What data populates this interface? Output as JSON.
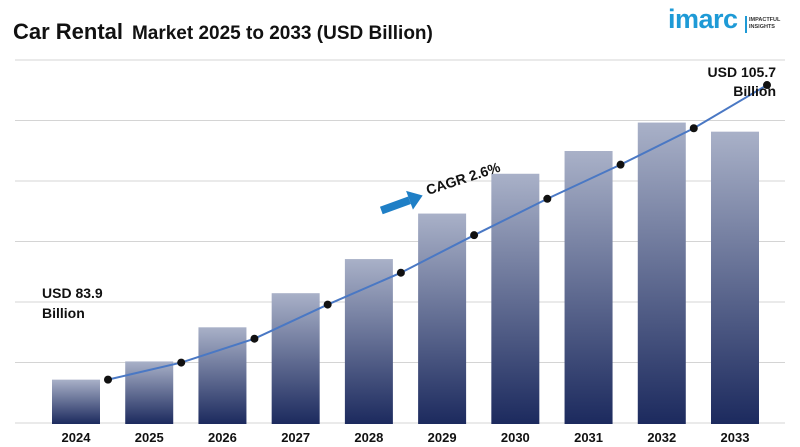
{
  "title": {
    "main": "Car Rental",
    "rest": "Market 2025 to 2033 (USD Billion)"
  },
  "logo": {
    "word": "imarc",
    "tagline": [
      "IMPACTFUL",
      "INSIGHTS"
    ]
  },
  "colors": {
    "bar_top": "#a9b1c8",
    "bar_bottom": "#1c2a5e",
    "line": "#4a78c4",
    "marker": "#111111",
    "arrow": "#1f7fc6",
    "grid": "#d4d4d4"
  },
  "chart_data": {
    "type": "bar",
    "categories": [
      "2024",
      "2025",
      "2026",
      "2027",
      "2028",
      "2029",
      "2030",
      "2031",
      "2032",
      "2033"
    ],
    "values": [
      83.9,
      85.5,
      88.5,
      91.5,
      94.5,
      98.5,
      102.0,
      104.0,
      106.5,
      105.7
    ],
    "trend_values": [
      83.9,
      85.4,
      87.5,
      90.5,
      93.3,
      96.6,
      99.8,
      102.8,
      106.0,
      109.8
    ],
    "ylim": [
      80,
      112
    ],
    "grid": true,
    "annotations": {
      "start_label": [
        "USD 83.9",
        "Billion"
      ],
      "end_label": [
        "USD 105.7",
        "Billion"
      ],
      "cagr": "CAGR 2.6%"
    }
  }
}
